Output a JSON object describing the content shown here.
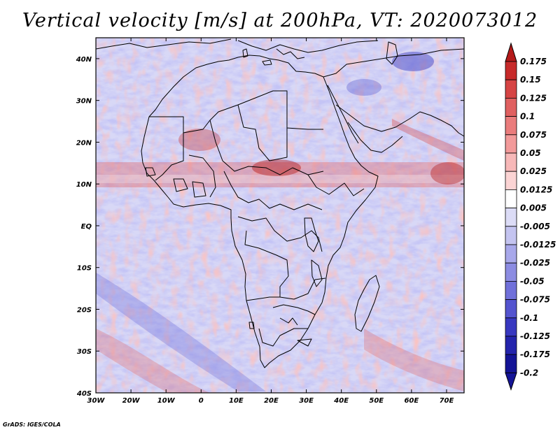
{
  "title": "Vertical velocity [m/s] at 200hPa, VT: 2020073012",
  "credit": "GrADS: IGES/COLA",
  "map": {
    "lon_range": [
      -30,
      75
    ],
    "lat_range": [
      -40,
      45
    ],
    "lon_labels": [
      "30W",
      "20W",
      "10W",
      "0",
      "10E",
      "20E",
      "30E",
      "40E",
      "50E",
      "60E",
      "70E"
    ],
    "lat_labels": [
      "40N",
      "30N",
      "20N",
      "10N",
      "EQ",
      "10S",
      "20S",
      "30S",
      "40S"
    ],
    "field_name": "omega-200hPa"
  },
  "colorbar": {
    "labels": [
      "0.175",
      "0.15",
      "0.125",
      "0.1",
      "0.075",
      "0.05",
      "0.025",
      "0.0125",
      "0.005",
      "-0.005",
      "-0.0125",
      "-0.025",
      "-0.05",
      "-0.075",
      "-0.1",
      "-0.125",
      "-0.175",
      "-0.2"
    ],
    "colors": [
      "#b41a1a",
      "#c72a2a",
      "#d64444",
      "#e06060",
      "#ea7c7c",
      "#f29a9a",
      "#f7b8b8",
      "#fbd4d4",
      "#ffffff",
      "#dcdcf6",
      "#c4c4f0",
      "#a8a8ea",
      "#8c8ce2",
      "#7070da",
      "#5454cf",
      "#3838c0",
      "#2424ac",
      "#141496"
    ]
  }
}
